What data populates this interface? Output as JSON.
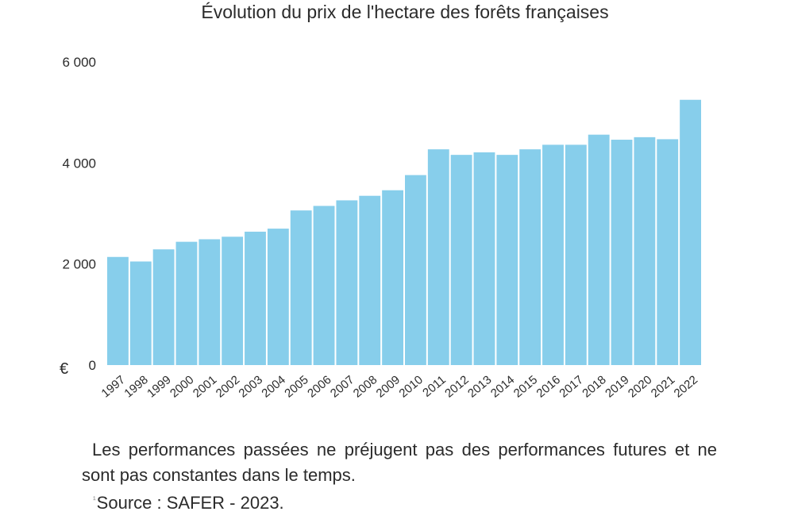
{
  "chart_data": {
    "type": "bar",
    "title": "Évolution du prix de l'hectare des forêts françaises",
    "ylabel": "€",
    "xlabel": "",
    "ylim": [
      0,
      6000
    ],
    "yticks": [
      "0",
      "2 000",
      "4 000",
      "6 000"
    ],
    "ytick_values": [
      0,
      2000,
      4000,
      6000
    ],
    "grid": false,
    "bar_color": "#87CEEB",
    "categories": [
      "1997",
      "1998",
      "1999",
      "2000",
      "2001",
      "2002",
      "2003",
      "2004",
      "2005",
      "2006",
      "2007",
      "2008",
      "2009",
      "2010",
      "2011",
      "2012",
      "2013",
      "2014",
      "2015",
      "2016",
      "2017",
      "2018",
      "2019",
      "2020",
      "2021",
      "2022"
    ],
    "values": [
      2140,
      2050,
      2290,
      2440,
      2490,
      2540,
      2640,
      2700,
      3060,
      3150,
      3260,
      3350,
      3460,
      3760,
      4270,
      4160,
      4210,
      4160,
      4270,
      4360,
      4360,
      4560,
      4460,
      4510,
      4470,
      5250
    ]
  },
  "footer": {
    "disclaimer": "Les performances passées ne préjugent pas des performances futures et ne sont pas constantes dans le temps.",
    "source_marker": "¹",
    "source": "Source : SAFER - 2023."
  }
}
